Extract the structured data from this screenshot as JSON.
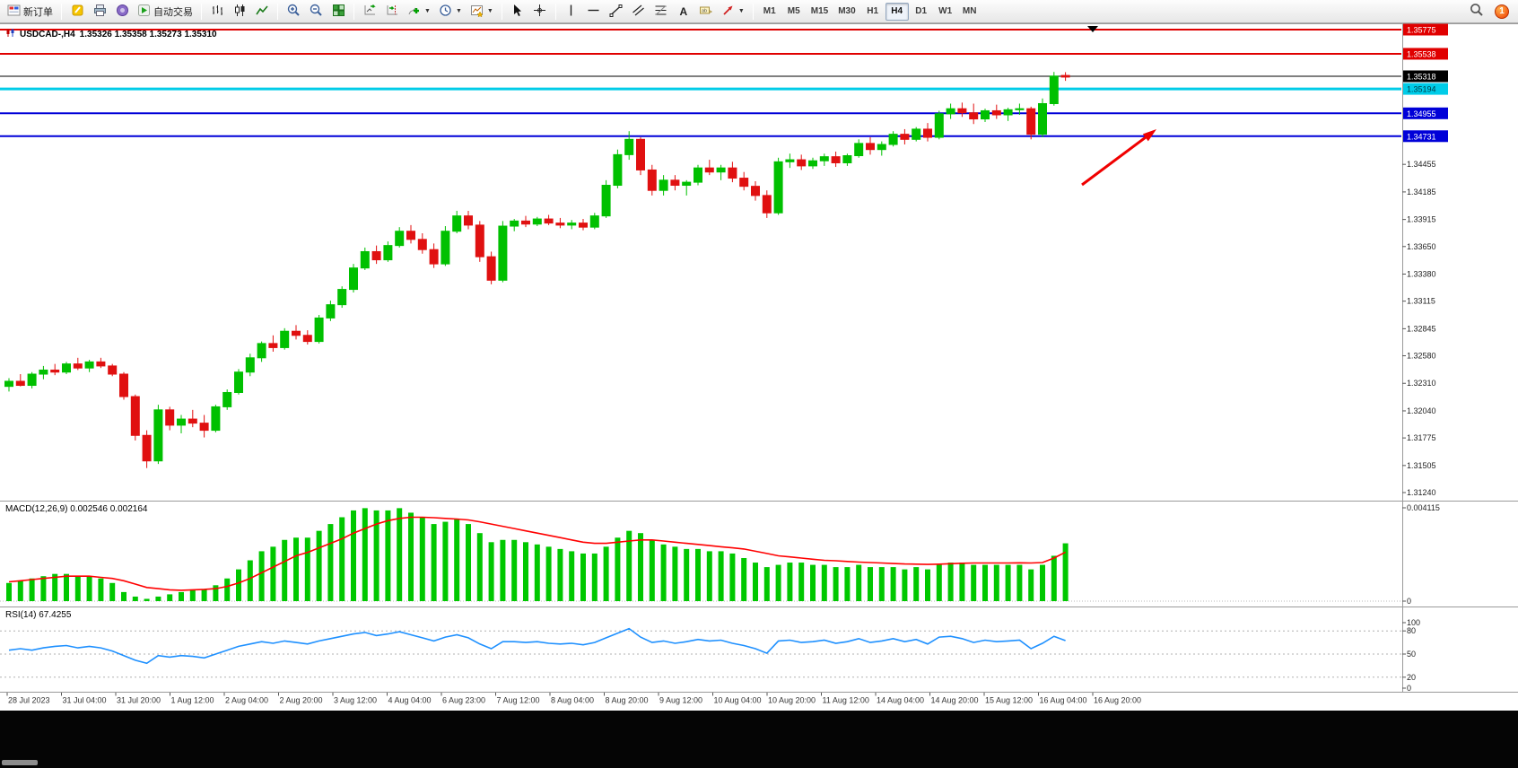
{
  "toolbar": {
    "new_order_label": "新订单",
    "autotrade_label": "自动交易",
    "timeframes": [
      "M1",
      "M5",
      "M15",
      "M30",
      "H1",
      "H4",
      "D1",
      "W1",
      "MN"
    ],
    "active_timeframe": "H4",
    "notification_count": "1"
  },
  "chart_data": {
    "type": "candlestick",
    "title": "USDCAD-,H4",
    "ohlc_label": "1.35326 1.35358 1.35273 1.35310",
    "up_color": "#00c000",
    "down_color": "#e01010",
    "levels": [
      {
        "label": "1.35775",
        "value": 1.35775,
        "color": "#e00000",
        "text": "#ffffff",
        "width": 2
      },
      {
        "label": "1.35538",
        "value": 1.35538,
        "color": "#e00000",
        "text": "#ffffff",
        "width": 2
      },
      {
        "label": "1.35318",
        "value": 1.35318,
        "color": "#000000",
        "text": "#ffffff",
        "width": 1
      },
      {
        "label": "1.35194",
        "value": 1.35194,
        "color": "#00cce8",
        "text": "#003b46",
        "width": 3
      },
      {
        "label": "1.34955",
        "value": 1.34955,
        "color": "#0000d8",
        "text": "#ffffff",
        "width": 2
      },
      {
        "label": "1.34731",
        "value": 1.34731,
        "color": "#0000d8",
        "text": "#ffffff",
        "width": 2
      }
    ],
    "y_ticks": [
      "1.34455",
      "1.34185",
      "1.33915",
      "1.33650",
      "1.33380",
      "1.33115",
      "1.32845",
      "1.32580",
      "1.32310",
      "1.32040",
      "1.31775",
      "1.31505",
      "1.31240"
    ],
    "x_labels": [
      "28 Jul 2023",
      "31 Jul 04:00",
      "31 Jul 20:00",
      "1 Aug 12:00",
      "2 Aug 04:00",
      "2 Aug 20:00",
      "3 Aug 12:00",
      "4 Aug 04:00",
      "6 Aug 23:00",
      "7 Aug 12:00",
      "8 Aug 04:00",
      "8 Aug 20:00",
      "9 Aug 12:00",
      "10 Aug 04:00",
      "10 Aug 20:00",
      "11 Aug 12:00",
      "14 Aug 04:00",
      "14 Aug 20:00",
      "15 Aug 12:00",
      "16 Aug 04:00",
      "16 Aug 20:00"
    ],
    "annotation_arrow": {
      "color": "#f00000"
    },
    "ohlc": [
      [
        1.3228,
        1.3236,
        1.3223,
        1.3233
      ],
      [
        1.3233,
        1.324,
        1.3228,
        1.3229
      ],
      [
        1.3229,
        1.3242,
        1.3226,
        1.324
      ],
      [
        1.324,
        1.3248,
        1.3235,
        1.3244
      ],
      [
        1.3244,
        1.325,
        1.3239,
        1.3242
      ],
      [
        1.3242,
        1.3252,
        1.324,
        1.325
      ],
      [
        1.325,
        1.3256,
        1.3244,
        1.3246
      ],
      [
        1.3246,
        1.3254,
        1.3242,
        1.3252
      ],
      [
        1.3252,
        1.3256,
        1.3246,
        1.3248
      ],
      [
        1.3248,
        1.325,
        1.3238,
        1.324
      ],
      [
        1.324,
        1.3242,
        1.3215,
        1.3218
      ],
      [
        1.3218,
        1.322,
        1.3175,
        1.318
      ],
      [
        1.318,
        1.3185,
        1.3148,
        1.3155
      ],
      [
        1.3155,
        1.321,
        1.3152,
        1.3205
      ],
      [
        1.3205,
        1.3208,
        1.3185,
        1.319
      ],
      [
        1.319,
        1.32,
        1.3182,
        1.3196
      ],
      [
        1.3196,
        1.3205,
        1.3188,
        1.3192
      ],
      [
        1.3192,
        1.32,
        1.3178,
        1.3185
      ],
      [
        1.3185,
        1.321,
        1.3183,
        1.3208
      ],
      [
        1.3208,
        1.3225,
        1.3205,
        1.3222
      ],
      [
        1.3222,
        1.3245,
        1.322,
        1.3242
      ],
      [
        1.3242,
        1.326,
        1.3238,
        1.3256
      ],
      [
        1.3256,
        1.3272,
        1.3252,
        1.327
      ],
      [
        1.327,
        1.3278,
        1.3262,
        1.3266
      ],
      [
        1.3266,
        1.3285,
        1.3264,
        1.3282
      ],
      [
        1.3282,
        1.3288,
        1.3274,
        1.3278
      ],
      [
        1.3278,
        1.3283,
        1.3269,
        1.3272
      ],
      [
        1.3272,
        1.3298,
        1.327,
        1.3295
      ],
      [
        1.3295,
        1.3312,
        1.3292,
        1.3308
      ],
      [
        1.3308,
        1.3326,
        1.3305,
        1.3323
      ],
      [
        1.3323,
        1.3348,
        1.332,
        1.3344
      ],
      [
        1.3344,
        1.3364,
        1.3342,
        1.336
      ],
      [
        1.336,
        1.3366,
        1.3348,
        1.3352
      ],
      [
        1.3352,
        1.337,
        1.335,
        1.3366
      ],
      [
        1.3366,
        1.3384,
        1.3364,
        1.338
      ],
      [
        1.338,
        1.3386,
        1.3368,
        1.3372
      ],
      [
        1.3372,
        1.3378,
        1.3358,
        1.3362
      ],
      [
        1.3362,
        1.3368,
        1.3344,
        1.3348
      ],
      [
        1.3348,
        1.3385,
        1.3346,
        1.338
      ],
      [
        1.338,
        1.34,
        1.3378,
        1.3395
      ],
      [
        1.3395,
        1.34,
        1.3382,
        1.3386
      ],
      [
        1.3386,
        1.339,
        1.335,
        1.3355
      ],
      [
        1.3355,
        1.336,
        1.3328,
        1.3332
      ],
      [
        1.3332,
        1.339,
        1.333,
        1.3385
      ],
      [
        1.3385,
        1.3392,
        1.338,
        1.339
      ],
      [
        1.339,
        1.3395,
        1.3384,
        1.3387
      ],
      [
        1.3387,
        1.3394,
        1.3385,
        1.3392
      ],
      [
        1.3392,
        1.3396,
        1.3386,
        1.3388
      ],
      [
        1.3388,
        1.3393,
        1.3383,
        1.3386
      ],
      [
        1.3386,
        1.3391,
        1.3382,
        1.3388
      ],
      [
        1.3388,
        1.3392,
        1.3381,
        1.3384
      ],
      [
        1.3384,
        1.3398,
        1.3382,
        1.3395
      ],
      [
        1.3395,
        1.343,
        1.3393,
        1.3425
      ],
      [
        1.3425,
        1.346,
        1.3422,
        1.3455
      ],
      [
        1.3455,
        1.3478,
        1.345,
        1.347
      ],
      [
        1.347,
        1.3472,
        1.3435,
        1.344
      ],
      [
        1.344,
        1.3445,
        1.3415,
        1.342
      ],
      [
        1.342,
        1.3435,
        1.3415,
        1.343
      ],
      [
        1.343,
        1.3435,
        1.342,
        1.3425
      ],
      [
        1.3425,
        1.343,
        1.3415,
        1.3428
      ],
      [
        1.3428,
        1.3445,
        1.3425,
        1.3442
      ],
      [
        1.3442,
        1.345,
        1.3435,
        1.3438
      ],
      [
        1.3438,
        1.3445,
        1.343,
        1.3442
      ],
      [
        1.3442,
        1.3448,
        1.3428,
        1.3432
      ],
      [
        1.3432,
        1.3438,
        1.342,
        1.3424
      ],
      [
        1.3424,
        1.3429,
        1.341,
        1.3415
      ],
      [
        1.3415,
        1.342,
        1.3393,
        1.3398
      ],
      [
        1.3398,
        1.3452,
        1.3396,
        1.3448
      ],
      [
        1.3448,
        1.3456,
        1.3442,
        1.345
      ],
      [
        1.345,
        1.3455,
        1.344,
        1.3444
      ],
      [
        1.3444,
        1.3452,
        1.3441,
        1.3449
      ],
      [
        1.3449,
        1.3456,
        1.3444,
        1.3453
      ],
      [
        1.3453,
        1.3458,
        1.3443,
        1.3447
      ],
      [
        1.3447,
        1.3456,
        1.3444,
        1.3454
      ],
      [
        1.3454,
        1.347,
        1.3452,
        1.3466
      ],
      [
        1.3466,
        1.3472,
        1.3455,
        1.346
      ],
      [
        1.346,
        1.3468,
        1.3454,
        1.3465
      ],
      [
        1.3465,
        1.3478,
        1.3463,
        1.3475
      ],
      [
        1.3475,
        1.348,
        1.3465,
        1.347
      ],
      [
        1.347,
        1.3482,
        1.3468,
        1.348
      ],
      [
        1.348,
        1.3486,
        1.3468,
        1.3472
      ],
      [
        1.3472,
        1.3498,
        1.347,
        1.3495
      ],
      [
        1.3495,
        1.3505,
        1.349,
        1.35
      ],
      [
        1.35,
        1.3506,
        1.3492,
        1.3496
      ],
      [
        1.3496,
        1.3505,
        1.3485,
        1.349
      ],
      [
        1.349,
        1.35,
        1.3487,
        1.3498
      ],
      [
        1.3498,
        1.3504,
        1.349,
        1.3494
      ],
      [
        1.3494,
        1.3501,
        1.3488,
        1.3499
      ],
      [
        1.3499,
        1.3505,
        1.3494,
        1.35
      ],
      [
        1.35,
        1.3502,
        1.347,
        1.3475
      ],
      [
        1.3475,
        1.351,
        1.3472,
        1.3505
      ],
      [
        1.3505,
        1.3536,
        1.3503,
        1.3532
      ],
      [
        1.35326,
        1.35358,
        1.35273,
        1.3531
      ]
    ],
    "macd": {
      "label": "MACD(12,26,9) 0.002546 0.002164",
      "color_hist": "#00c800",
      "color_signal": "#ff0000",
      "axis": [
        "0.004115",
        "0"
      ],
      "max": 0.004115,
      "histogram": [
        0.0008,
        0.0009,
        0.001,
        0.0011,
        0.0012,
        0.0012,
        0.0011,
        0.0011,
        0.001,
        0.0008,
        0.0004,
        0.0002,
        0.0001,
        0.0002,
        0.0003,
        0.0004,
        0.0005,
        0.0005,
        0.0007,
        0.001,
        0.0014,
        0.0018,
        0.0022,
        0.0024,
        0.0027,
        0.0028,
        0.0028,
        0.0031,
        0.0034,
        0.0037,
        0.004,
        0.0041,
        0.004,
        0.004,
        0.0041,
        0.0039,
        0.0037,
        0.0034,
        0.0035,
        0.0036,
        0.0034,
        0.003,
        0.0026,
        0.0027,
        0.0027,
        0.0026,
        0.0025,
        0.0024,
        0.0023,
        0.0022,
        0.0021,
        0.0021,
        0.0024,
        0.0028,
        0.0031,
        0.003,
        0.0027,
        0.0025,
        0.0024,
        0.0023,
        0.0023,
        0.0022,
        0.0022,
        0.0021,
        0.0019,
        0.0017,
        0.0015,
        0.0016,
        0.0017,
        0.0017,
        0.0016,
        0.0016,
        0.0015,
        0.0015,
        0.0016,
        0.0015,
        0.0015,
        0.0015,
        0.0014,
        0.0015,
        0.0014,
        0.0016,
        0.0017,
        0.0017,
        0.0016,
        0.0016,
        0.0016,
        0.0016,
        0.0016,
        0.0014,
        0.0016,
        0.002,
        0.00255
      ],
      "signal": [
        0.00085,
        0.0009,
        0.00095,
        0.001,
        0.00105,
        0.0011,
        0.0011,
        0.0011,
        0.00105,
        0.001,
        0.0009,
        0.00075,
        0.0006,
        0.00055,
        0.0005,
        0.00048,
        0.0005,
        0.00052,
        0.00055,
        0.00065,
        0.0008,
        0.001,
        0.00125,
        0.0015,
        0.00175,
        0.002,
        0.00215,
        0.00235,
        0.00255,
        0.00275,
        0.003,
        0.0032,
        0.0034,
        0.00355,
        0.00365,
        0.0037,
        0.0037,
        0.00368,
        0.00365,
        0.00362,
        0.00358,
        0.0035,
        0.0034,
        0.0033,
        0.0032,
        0.0031,
        0.003,
        0.0029,
        0.0028,
        0.0027,
        0.0026,
        0.00255,
        0.00255,
        0.0026,
        0.00265,
        0.0027,
        0.0027,
        0.00265,
        0.0026,
        0.00255,
        0.0025,
        0.00245,
        0.0024,
        0.00235,
        0.0023,
        0.0022,
        0.0021,
        0.002,
        0.00195,
        0.0019,
        0.00185,
        0.0018,
        0.00178,
        0.00175,
        0.00172,
        0.0017,
        0.00168,
        0.00166,
        0.00164,
        0.00163,
        0.00162,
        0.00163,
        0.00165,
        0.00167,
        0.00168,
        0.00168,
        0.00168,
        0.00168,
        0.00169,
        0.00168,
        0.0017,
        0.0019,
        0.00216
      ]
    },
    "rsi": {
      "label": "RSI(14) 67.4255",
      "color": "#1e90ff",
      "axis": [
        "100",
        "80",
        "50",
        "20",
        "0"
      ],
      "levels": [
        80,
        50,
        20
      ],
      "values": [
        55,
        57,
        55,
        58,
        60,
        61,
        58,
        60,
        58,
        54,
        48,
        42,
        38,
        48,
        46,
        48,
        47,
        45,
        50,
        55,
        60,
        63,
        66,
        64,
        67,
        65,
        63,
        67,
        70,
        73,
        76,
        78,
        74,
        76,
        79,
        75,
        71,
        67,
        72,
        75,
        71,
        63,
        57,
        66,
        66,
        65,
        66,
        64,
        63,
        64,
        62,
        65,
        71,
        77,
        83,
        72,
        65,
        67,
        64,
        66,
        69,
        67,
        68,
        64,
        61,
        57,
        51,
        67,
        68,
        65,
        66,
        68,
        64,
        66,
        70,
        65,
        67,
        70,
        66,
        69,
        63,
        72,
        73,
        70,
        65,
        68,
        66,
        67,
        68,
        57,
        64,
        73,
        67.4
      ]
    }
  }
}
